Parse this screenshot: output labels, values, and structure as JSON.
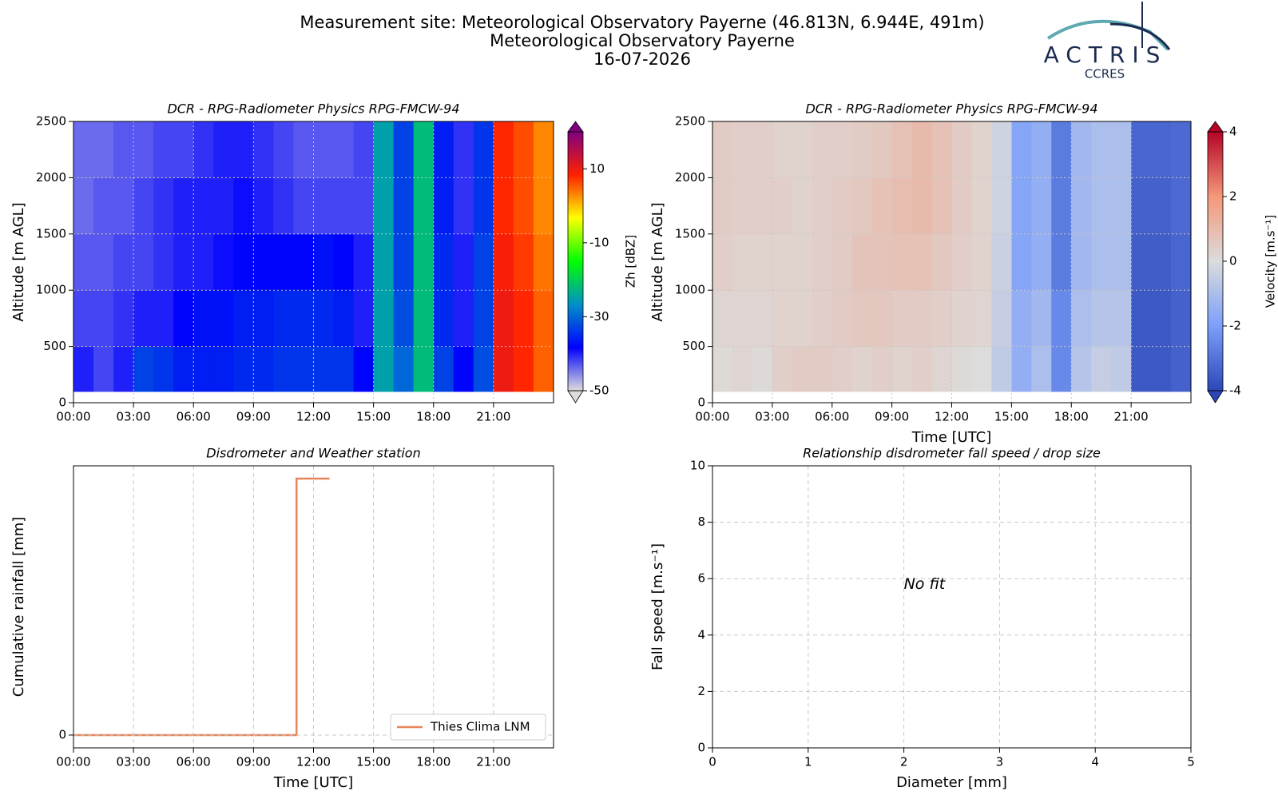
{
  "header": {
    "title_lines": [
      "Measurement site: Meteorological Observatory Payerne (46.813N, 6.944E, 491m)",
      "Meteorological Observatory Payerne",
      "16-07-2026"
    ],
    "logo": "ACTRIS",
    "logo_sub": "CCRES"
  },
  "chart_data": [
    {
      "type": "heatmap",
      "title": "DCR - RPG-Radiometer Physics RPG-FMCW-94",
      "ylabel": "Altitude [m AGL]",
      "xlim": [
        0,
        24
      ],
      "xticks": [
        {
          "value": 0,
          "label": "00:00"
        },
        {
          "value": 3,
          "label": "03:00"
        },
        {
          "value": 6,
          "label": "06:00"
        },
        {
          "value": 9,
          "label": "09:00"
        },
        {
          "value": 12,
          "label": "12:00"
        },
        {
          "value": 15,
          "label": "15:00"
        },
        {
          "value": 18,
          "label": "18:00"
        },
        {
          "value": 21,
          "label": "21:00"
        }
      ],
      "ylim": [
        0,
        2500
      ],
      "yticks": [
        0,
        500,
        1000,
        1500,
        2000,
        2500
      ],
      "grid": true,
      "xbins": [
        0,
        1,
        2,
        3,
        4,
        5,
        6,
        7,
        8,
        9,
        10,
        11,
        12,
        13,
        14,
        15,
        16,
        17,
        18,
        19,
        20,
        21,
        22,
        23,
        24
      ],
      "ybins": [
        100,
        500,
        1000,
        1500,
        2000,
        2500
      ],
      "z": [
        [
          -40,
          -42,
          -40,
          -33,
          -34,
          -36,
          -36,
          -36,
          -35,
          -35,
          -34,
          -34,
          -34,
          -34,
          -38,
          -25,
          -30,
          -22,
          -33,
          -38,
          -32,
          10,
          8,
          5
        ],
        [
          -42,
          -42,
          -41,
          -40,
          -40,
          -38,
          -37,
          -37,
          -36,
          -36,
          -35,
          -35,
          -35,
          -36,
          -40,
          -25,
          -32,
          -22,
          -35,
          -40,
          -33,
          10,
          8,
          5
        ],
        [
          -43,
          -43,
          -42,
          -42,
          -41,
          -40,
          -40,
          -39,
          -38,
          -38,
          -38,
          -38,
          -37,
          -38,
          -40,
          -25,
          -33,
          -22,
          -35,
          -40,
          -33,
          9,
          7,
          4
        ],
        [
          -44,
          -43,
          -43,
          -42,
          -41,
          -40,
          -40,
          -40,
          -39,
          -40,
          -41,
          -42,
          -42,
          -42,
          -42,
          -25,
          -33,
          -22,
          -36,
          -41,
          -34,
          8,
          6,
          3
        ],
        [
          -44,
          -44,
          -43,
          -43,
          -42,
          -42,
          -41,
          -40,
          -40,
          -41,
          -42,
          -43,
          -43,
          -43,
          -42,
          -25,
          -33,
          -22,
          -36,
          -41,
          -34,
          8,
          6,
          3
        ]
      ],
      "clim": [
        -50,
        20
      ],
      "cticks": [
        -50,
        -30,
        -10,
        10
      ],
      "clabel": "Zh [dBZ]",
      "colors": [
        "#dcdcdc",
        "#0000ff",
        "#0090c8",
        "#00ff00",
        "#ffff00",
        "#ff2000",
        "#800080"
      ]
    },
    {
      "type": "heatmap",
      "title": "DCR - RPG-Radiometer Physics RPG-FMCW-94",
      "xlabel": "Time [UTC]",
      "ylabel": "Altitude [m AGL]",
      "xlim": [
        0,
        24
      ],
      "xticks": [
        {
          "value": 0,
          "label": "00:00"
        },
        {
          "value": 3,
          "label": "03:00"
        },
        {
          "value": 6,
          "label": "06:00"
        },
        {
          "value": 9,
          "label": "09:00"
        },
        {
          "value": 12,
          "label": "12:00"
        },
        {
          "value": 15,
          "label": "15:00"
        },
        {
          "value": 18,
          "label": "18:00"
        },
        {
          "value": 21,
          "label": "21:00"
        }
      ],
      "ylim": [
        0,
        2500
      ],
      "yticks": [
        0,
        500,
        1000,
        1500,
        2000,
        2500
      ],
      "grid": true,
      "xbins": [
        0,
        1,
        2,
        3,
        4,
        5,
        6,
        7,
        8,
        9,
        10,
        11,
        12,
        13,
        14,
        15,
        16,
        17,
        18,
        19,
        20,
        21,
        22,
        23,
        24
      ],
      "ybins": [
        100,
        500,
        1000,
        1500,
        2000,
        2500
      ],
      "z": [
        [
          0.1,
          0.2,
          0.1,
          0.4,
          0.5,
          0.5,
          0.4,
          0.3,
          0.4,
          0.3,
          0.4,
          0.2,
          0.1,
          0.0,
          -0.6,
          -1.5,
          -1.0,
          -2.5,
          -0.8,
          -0.5,
          -0.6,
          -3.6,
          -3.6,
          -3.4
        ],
        [
          0.2,
          0.2,
          0.2,
          0.3,
          0.3,
          0.4,
          0.5,
          0.6,
          0.6,
          0.5,
          0.5,
          0.4,
          0.3,
          0.2,
          -0.5,
          -1.5,
          -1.2,
          -2.5,
          -1.0,
          -0.8,
          -0.8,
          -3.6,
          -3.6,
          -3.4
        ],
        [
          0.4,
          0.3,
          0.3,
          0.3,
          0.3,
          0.4,
          0.5,
          0.7,
          0.7,
          0.8,
          0.8,
          0.6,
          0.4,
          0.3,
          -0.4,
          -1.8,
          -1.5,
          -2.8,
          -1.2,
          -1.0,
          -1.0,
          -3.5,
          -3.5,
          -3.3
        ],
        [
          0.5,
          0.4,
          0.4,
          0.4,
          0.3,
          0.4,
          0.5,
          0.6,
          0.8,
          0.9,
          1.0,
          0.8,
          0.5,
          0.3,
          -0.3,
          -1.8,
          -1.5,
          -2.8,
          -1.2,
          -1.0,
          -1.0,
          -3.4,
          -3.4,
          -3.2
        ],
        [
          0.5,
          0.4,
          0.4,
          0.3,
          0.3,
          0.4,
          0.4,
          0.5,
          0.6,
          0.8,
          1.0,
          0.8,
          0.5,
          0.3,
          -0.3,
          -1.8,
          -1.5,
          -2.8,
          -1.2,
          -1.0,
          -1.0,
          -3.3,
          -3.3,
          -3.2
        ]
      ],
      "clim": [
        -4,
        4
      ],
      "cticks": [
        -4,
        -2,
        0,
        2,
        4
      ],
      "clabel": "Velocity [m.s⁻¹]",
      "colors": [
        "#2c47b8",
        "#7b9ff9",
        "#dcdcdc",
        "#f4987a",
        "#b40426"
      ]
    },
    {
      "type": "line",
      "title": "Disdrometer and Weather station",
      "xlabel": "Time [UTC]",
      "ylabel": "Cumulative rainfall [mm]",
      "xlim": [
        0,
        24
      ],
      "xticks": [
        {
          "value": 0,
          "label": "00:00"
        },
        {
          "value": 3,
          "label": "03:00"
        },
        {
          "value": 6,
          "label": "06:00"
        },
        {
          "value": 9,
          "label": "09:00"
        },
        {
          "value": 12,
          "label": "12:00"
        },
        {
          "value": 15,
          "label": "15:00"
        },
        {
          "value": 18,
          "label": "18:00"
        },
        {
          "value": 21,
          "label": "21:00"
        }
      ],
      "ylim": [
        -0.005,
        0.105
      ],
      "yticks": [
        0
      ],
      "grid": true,
      "legend": "lower right",
      "x": [
        0,
        11.15,
        11.15,
        12.8
      ],
      "series": [
        {
          "name": "Thies Clima LNM",
          "color": "#e8845a",
          "values": [
            0,
            0,
            0.1,
            0.1
          ]
        }
      ]
    },
    {
      "type": "scatter",
      "title": "Relationship disdrometer fall speed / drop size",
      "xlabel": "Diameter [mm]",
      "ylabel": "Fall speed [m.s⁻¹]",
      "xlim": [
        0,
        5
      ],
      "xticks": [
        0,
        1,
        2,
        3,
        4,
        5
      ],
      "ylim": [
        0,
        10
      ],
      "yticks": [
        0,
        2,
        4,
        6,
        8,
        10
      ],
      "grid": true,
      "annotation": "No fit"
    }
  ]
}
